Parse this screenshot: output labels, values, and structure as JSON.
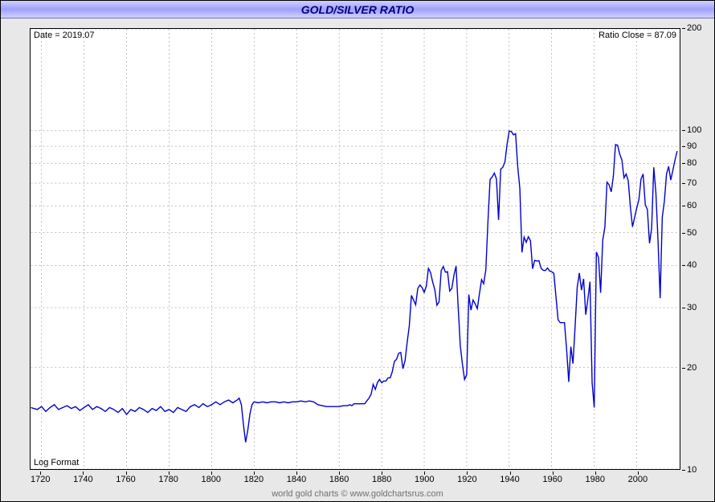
{
  "title": "GOLD/SILVER RATIO",
  "date_label": "Date = 2019.07",
  "ratio_label": "Ratio Close = 87.09",
  "log_label": "Log Format",
  "credit": "world gold charts © www.goldchartsrus.com",
  "chart": {
    "type": "line",
    "scale_y": "log",
    "xlim": [
      1715,
      2020
    ],
    "ylim": [
      10,
      200
    ],
    "x_ticks": [
      1720,
      1740,
      1760,
      1780,
      1800,
      1820,
      1840,
      1860,
      1880,
      1900,
      1920,
      1940,
      1960,
      1980,
      2000
    ],
    "y_ticks": [
      10,
      20,
      30,
      40,
      50,
      60,
      70,
      80,
      90,
      100,
      200
    ],
    "line_color": "#0000d0",
    "line_width": 1.4,
    "grid_color": "#808080",
    "grid_dash": "2,3",
    "plot_background": "#ffffff",
    "outer_background": "#e8e8e8",
    "title_gradient": [
      "#d0d0ff",
      "#a0a0ff",
      "#d0d0ff"
    ],
    "title_color": "#000080",
    "border_color": "#000000",
    "font_family": "Arial",
    "tick_fontsize": 11,
    "title_fontsize": 14,
    "series": [
      [
        1715,
        15.2
      ],
      [
        1718,
        15.0
      ],
      [
        1720,
        15.3
      ],
      [
        1722,
        14.8
      ],
      [
        1724,
        15.2
      ],
      [
        1726,
        15.5
      ],
      [
        1728,
        15.0
      ],
      [
        1730,
        15.2
      ],
      [
        1732,
        15.4
      ],
      [
        1734,
        15.1
      ],
      [
        1736,
        15.3
      ],
      [
        1738,
        14.9
      ],
      [
        1740,
        15.2
      ],
      [
        1742,
        15.5
      ],
      [
        1744,
        15.0
      ],
      [
        1746,
        15.3
      ],
      [
        1748,
        15.1
      ],
      [
        1750,
        14.8
      ],
      [
        1752,
        15.2
      ],
      [
        1754,
        15.0
      ],
      [
        1756,
        14.7
      ],
      [
        1758,
        15.1
      ],
      [
        1760,
        14.5
      ],
      [
        1762,
        15.0
      ],
      [
        1764,
        14.8
      ],
      [
        1766,
        15.2
      ],
      [
        1768,
        15.0
      ],
      [
        1770,
        14.7
      ],
      [
        1772,
        15.1
      ],
      [
        1774,
        14.9
      ],
      [
        1776,
        15.3
      ],
      [
        1778,
        14.8
      ],
      [
        1780,
        15.0
      ],
      [
        1782,
        14.7
      ],
      [
        1784,
        15.2
      ],
      [
        1786,
        15.0
      ],
      [
        1788,
        14.8
      ],
      [
        1790,
        15.3
      ],
      [
        1792,
        15.5
      ],
      [
        1794,
        15.2
      ],
      [
        1796,
        15.6
      ],
      [
        1798,
        15.3
      ],
      [
        1800,
        15.5
      ],
      [
        1802,
        15.8
      ],
      [
        1804,
        15.5
      ],
      [
        1806,
        15.8
      ],
      [
        1808,
        16.0
      ],
      [
        1810,
        15.7
      ],
      [
        1812,
        16.0
      ],
      [
        1813,
        16.2
      ],
      [
        1814,
        15.5
      ],
      [
        1815,
        13.5
      ],
      [
        1816,
        12.0
      ],
      [
        1817,
        13.0
      ],
      [
        1818,
        14.5
      ],
      [
        1819,
        15.5
      ],
      [
        1820,
        15.8
      ],
      [
        1822,
        15.7
      ],
      [
        1824,
        15.8
      ],
      [
        1826,
        15.7
      ],
      [
        1828,
        15.8
      ],
      [
        1830,
        15.8
      ],
      [
        1832,
        15.7
      ],
      [
        1834,
        15.8
      ],
      [
        1836,
        15.7
      ],
      [
        1838,
        15.8
      ],
      [
        1840,
        15.8
      ],
      [
        1842,
        15.9
      ],
      [
        1844,
        15.8
      ],
      [
        1846,
        15.9
      ],
      [
        1848,
        15.8
      ],
      [
        1850,
        15.5
      ],
      [
        1852,
        15.4
      ],
      [
        1854,
        15.3
      ],
      [
        1856,
        15.3
      ],
      [
        1858,
        15.3
      ],
      [
        1860,
        15.3
      ],
      [
        1862,
        15.4
      ],
      [
        1864,
        15.4
      ],
      [
        1865,
        15.5
      ],
      [
        1866,
        15.4
      ],
      [
        1867,
        15.6
      ],
      [
        1868,
        15.6
      ],
      [
        1869,
        15.6
      ],
      [
        1870,
        15.6
      ],
      [
        1871,
        15.6
      ],
      [
        1872,
        15.6
      ],
      [
        1873,
        15.9
      ],
      [
        1874,
        16.2
      ],
      [
        1875,
        16.6
      ],
      [
        1876,
        17.8
      ],
      [
        1877,
        17.2
      ],
      [
        1878,
        18.0
      ],
      [
        1879,
        18.4
      ],
      [
        1880,
        18.0
      ],
      [
        1881,
        18.2
      ],
      [
        1882,
        18.2
      ],
      [
        1883,
        18.6
      ],
      [
        1884,
        18.6
      ],
      [
        1885,
        19.4
      ],
      [
        1886,
        20.8
      ],
      [
        1887,
        21.1
      ],
      [
        1888,
        22.0
      ],
      [
        1889,
        22.1
      ],
      [
        1890,
        19.8
      ],
      [
        1891,
        20.9
      ],
      [
        1892,
        23.7
      ],
      [
        1893,
        26.5
      ],
      [
        1894,
        32.6
      ],
      [
        1895,
        31.6
      ],
      [
        1896,
        30.6
      ],
      [
        1897,
        34.2
      ],
      [
        1898,
        35.0
      ],
      [
        1899,
        34.4
      ],
      [
        1900,
        33.3
      ],
      [
        1901,
        34.7
      ],
      [
        1902,
        39.2
      ],
      [
        1903,
        38.1
      ],
      [
        1904,
        35.7
      ],
      [
        1905,
        33.9
      ],
      [
        1906,
        30.5
      ],
      [
        1907,
        31.2
      ],
      [
        1908,
        38.6
      ],
      [
        1909,
        39.7
      ],
      [
        1910,
        38.2
      ],
      [
        1911,
        38.3
      ],
      [
        1912,
        33.6
      ],
      [
        1913,
        34.2
      ],
      [
        1914,
        37.4
      ],
      [
        1915,
        39.8
      ],
      [
        1916,
        30.1
      ],
      [
        1917,
        23.1
      ],
      [
        1918,
        20.4
      ],
      [
        1919,
        18.4
      ],
      [
        1920,
        19.0
      ],
      [
        1921,
        32.8
      ],
      [
        1922,
        29.5
      ],
      [
        1923,
        31.6
      ],
      [
        1924,
        30.8
      ],
      [
        1925,
        29.8
      ],
      [
        1926,
        33.0
      ],
      [
        1927,
        36.3
      ],
      [
        1928,
        35.3
      ],
      [
        1929,
        38.8
      ],
      [
        1930,
        53.9
      ],
      [
        1931,
        71.8
      ],
      [
        1932,
        73.0
      ],
      [
        1933,
        75.0
      ],
      [
        1934,
        72.0
      ],
      [
        1935,
        54.5
      ],
      [
        1936,
        77.0
      ],
      [
        1937,
        78.0
      ],
      [
        1938,
        80.9
      ],
      [
        1939,
        91.3
      ],
      [
        1940,
        99.8
      ],
      [
        1941,
        99.5
      ],
      [
        1942,
        97.3
      ],
      [
        1943,
        98.0
      ],
      [
        1944,
        78.5
      ],
      [
        1945,
        67.5
      ],
      [
        1946,
        43.7
      ],
      [
        1947,
        48.5
      ],
      [
        1948,
        46.8
      ],
      [
        1949,
        48.6
      ],
      [
        1950,
        47.3
      ],
      [
        1951,
        39.1
      ],
      [
        1952,
        41.4
      ],
      [
        1953,
        41.2
      ],
      [
        1954,
        41.3
      ],
      [
        1955,
        39.2
      ],
      [
        1956,
        38.7
      ],
      [
        1957,
        38.6
      ],
      [
        1958,
        39.3
      ],
      [
        1959,
        38.5
      ],
      [
        1960,
        38.3
      ],
      [
        1961,
        37.9
      ],
      [
        1962,
        32.3
      ],
      [
        1963,
        27.6
      ],
      [
        1964,
        27.1
      ],
      [
        1965,
        27.1
      ],
      [
        1966,
        27.1
      ],
      [
        1967,
        22.6
      ],
      [
        1968,
        18.1
      ],
      [
        1969,
        23.0
      ],
      [
        1970,
        20.5
      ],
      [
        1971,
        26.4
      ],
      [
        1972,
        34.5
      ],
      [
        1973,
        38.0
      ],
      [
        1974,
        33.8
      ],
      [
        1975,
        36.5
      ],
      [
        1976,
        28.6
      ],
      [
        1977,
        31.8
      ],
      [
        1978,
        35.8
      ],
      [
        1979,
        18.0
      ],
      [
        1980,
        15.2
      ],
      [
        1981,
        43.8
      ],
      [
        1982,
        42.2
      ],
      [
        1983,
        33.2
      ],
      [
        1984,
        47.5
      ],
      [
        1985,
        51.9
      ],
      [
        1986,
        70.5
      ],
      [
        1987,
        69.2
      ],
      [
        1988,
        66.0
      ],
      [
        1989,
        73.5
      ],
      [
        1990,
        91.0
      ],
      [
        1991,
        90.6
      ],
      [
        1992,
        85.2
      ],
      [
        1993,
        82.0
      ],
      [
        1994,
        72.6
      ],
      [
        1995,
        74.5
      ],
      [
        1996,
        71.2
      ],
      [
        1997,
        59.5
      ],
      [
        1998,
        52.0
      ],
      [
        1999,
        55.5
      ],
      [
        2000,
        59.2
      ],
      [
        2001,
        62.5
      ],
      [
        2002,
        72.0
      ],
      [
        2003,
        74.5
      ],
      [
        2004,
        60.5
      ],
      [
        2005,
        58.5
      ],
      [
        2006,
        46.5
      ],
      [
        2007,
        51.5
      ],
      [
        2008,
        78.0
      ],
      [
        2009,
        65.5
      ],
      [
        2010,
        47.5
      ],
      [
        2011,
        32.0
      ],
      [
        2012,
        55.5
      ],
      [
        2013,
        62.0
      ],
      [
        2014,
        74.5
      ],
      [
        2015,
        78.5
      ],
      [
        2016,
        71.5
      ],
      [
        2017,
        76.5
      ],
      [
        2018,
        82.0
      ],
      [
        2019,
        87.09
      ]
    ]
  }
}
